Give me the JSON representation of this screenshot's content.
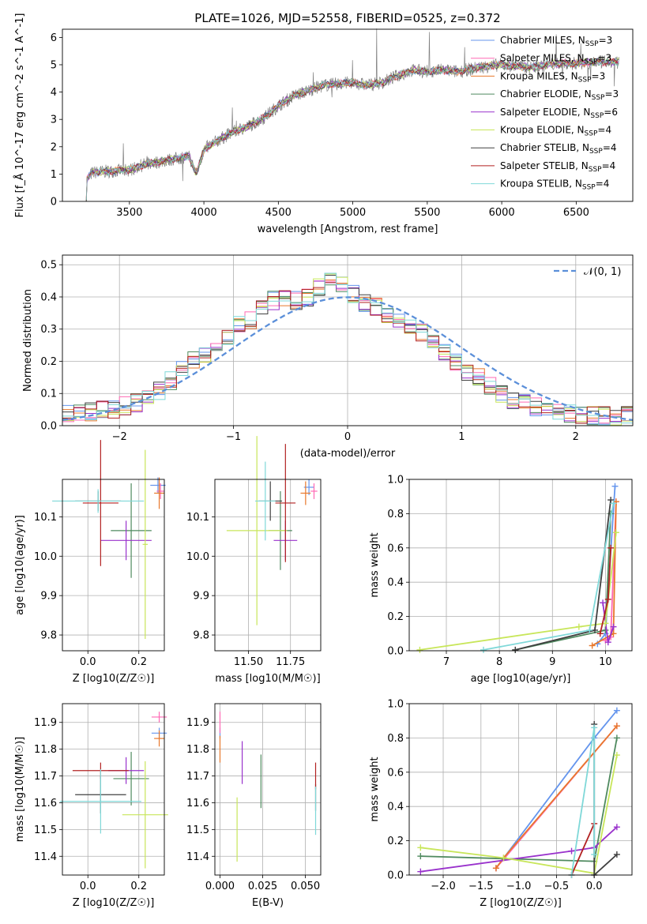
{
  "figure": {
    "title": "PLATE=1026, MJD=52558, FIBERID=0525, z=0.372"
  },
  "colors": {
    "Chabrier MILES": "#6495ed",
    "Salpeter MILES": "#ff69b4",
    "Kroupa MILES": "#e8782c",
    "Chabrier ELODIE": "#4f8a5f",
    "Salpeter ELODIE": "#9932cc",
    "Kroupa ELODIE": "#c8e65a",
    "Chabrier STELIB": "#404040",
    "Salpeter STELIB": "#b22222",
    "Kroupa STELIB": "#7fd8d8",
    "data": "#808080",
    "normal": "#5b8fd9"
  },
  "chart_data": [
    {
      "id": "spectrum",
      "type": "line",
      "title": "PLATE=1026, MJD=52558, FIBERID=0525, z=0.372",
      "xlabel": "wavelength [Angstrom, rest frame]",
      "ylabel": "Flux [f_Å 10^-17 erg cm^-2 s^-1 A^-1]",
      "xlim": [
        3050,
        6880
      ],
      "ylim": [
        0,
        6.3
      ],
      "xticks": [
        "3500",
        "4000",
        "4500",
        "5000",
        "5500",
        "6000",
        "6500"
      ],
      "yticks": [
        "0",
        "1",
        "2",
        "3",
        "4",
        "5",
        "6"
      ],
      "grid": false,
      "legend_position": "top-right",
      "legend": [
        {
          "model": "Chabrier MILES",
          "label": "Chabrier MILES, N",
          "sub": "SSP",
          "n": "=3"
        },
        {
          "model": "Salpeter MILES",
          "label": "Salpeter MILES, N",
          "sub": "SSP",
          "n": "=3"
        },
        {
          "model": "Kroupa MILES",
          "label": "Kroupa MILES, N",
          "sub": "SSP",
          "n": "=3"
        },
        {
          "model": "Chabrier ELODIE",
          "label": "Chabrier ELODIE, N",
          "sub": "SSP",
          "n": "=3"
        },
        {
          "model": "Salpeter ELODIE",
          "label": "Salpeter ELODIE, N",
          "sub": "SSP",
          "n": "=6"
        },
        {
          "model": "Kroupa ELODIE",
          "label": "Kroupa ELODIE, N",
          "sub": "SSP",
          "n": "=4"
        },
        {
          "model": "Chabrier STELIB",
          "label": "Chabrier STELIB, N",
          "sub": "SSP",
          "n": "=4"
        },
        {
          "model": "Salpeter STELIB",
          "label": "Salpeter STELIB, N",
          "sub": "SSP",
          "n": "=4"
        },
        {
          "model": "Kroupa STELIB",
          "label": "Kroupa STELIB, N",
          "sub": "SSP",
          "n": "=4"
        }
      ],
      "continuum": [
        [
          3210,
          0
        ],
        [
          3215,
          0.8
        ],
        [
          3250,
          1.05
        ],
        [
          3350,
          1.1
        ],
        [
          3500,
          1.15
        ],
        [
          3600,
          1.35
        ],
        [
          3700,
          1.45
        ],
        [
          3800,
          1.55
        ],
        [
          3900,
          1.65
        ],
        [
          3950,
          1.0
        ],
        [
          4000,
          1.9
        ],
        [
          4100,
          2.25
        ],
        [
          4200,
          2.55
        ],
        [
          4300,
          2.75
        ],
        [
          4400,
          3.05
        ],
        [
          4500,
          3.5
        ],
        [
          4600,
          3.85
        ],
        [
          4700,
          4.05
        ],
        [
          4800,
          4.25
        ],
        [
          4900,
          4.3
        ],
        [
          5000,
          4.35
        ],
        [
          5100,
          4.25
        ],
        [
          5200,
          4.35
        ],
        [
          5300,
          4.6
        ],
        [
          5400,
          4.8
        ],
        [
          5500,
          4.75
        ],
        [
          5600,
          4.8
        ],
        [
          5700,
          4.75
        ],
        [
          5800,
          4.85
        ],
        [
          5900,
          4.95
        ],
        [
          6000,
          5.0
        ],
        [
          6100,
          4.95
        ],
        [
          6200,
          4.9
        ],
        [
          6300,
          5.0
        ],
        [
          6400,
          5.05
        ],
        [
          6500,
          5.05
        ],
        [
          6600,
          5.1
        ],
        [
          6700,
          5.1
        ]
      ]
    },
    {
      "id": "residuals",
      "type": "area",
      "xlabel": "(data-model)/error",
      "ylabel": "Normed distribution",
      "xlim": [
        -2.5,
        2.5
      ],
      "ylim": [
        0,
        0.53
      ],
      "xticks": [
        "−2",
        "−1",
        "0",
        "1",
        "2"
      ],
      "yticks": [
        "0.0",
        "0.1",
        "0.2",
        "0.3",
        "0.4",
        "0.5"
      ],
      "grid": true,
      "legend_position": "top-right",
      "legend_label": "𝒩(0, 1)",
      "bins": [
        -2.5,
        2.5,
        50
      ],
      "histogram_values_approx": [
        0.04,
        0.04,
        0.045,
        0.05,
        0.05,
        0.06,
        0.07,
        0.09,
        0.11,
        0.14,
        0.17,
        0.2,
        0.22,
        0.25,
        0.28,
        0.31,
        0.33,
        0.36,
        0.39,
        0.4,
        0.39,
        0.4,
        0.43,
        0.45,
        0.44,
        0.41,
        0.38,
        0.37,
        0.35,
        0.33,
        0.31,
        0.29,
        0.26,
        0.23,
        0.2,
        0.17,
        0.15,
        0.12,
        0.1,
        0.08,
        0.07,
        0.06,
        0.05,
        0.045,
        0.04,
        0.035,
        0.03,
        0.03,
        0.03,
        0.03
      ]
    },
    {
      "id": "age-vs-Z",
      "type": "scatter",
      "xlabel": "Z [log10(Z/Z☉)]",
      "ylabel": "age [log10(age/yr)]",
      "xlim": [
        -0.1,
        0.3
      ],
      "ylim": [
        9.76,
        10.195
      ],
      "xticks": [
        "0.0",
        "0.2"
      ],
      "yticks": [
        "9.8",
        "9.9",
        "10.0",
        "10.1"
      ],
      "grid": true,
      "points": [
        {
          "model": "Chabrier MILES",
          "x": 0.275,
          "y": 10.18,
          "xerr": 0.03,
          "yerr": 0.02
        },
        {
          "model": "Salpeter MILES",
          "x": 0.285,
          "y": 10.165,
          "xerr": 0.015,
          "yerr": 0.02
        },
        {
          "model": "Kroupa MILES",
          "x": 0.28,
          "y": 10.16,
          "xerr": 0.02,
          "yerr": 0.04
        },
        {
          "model": "Chabrier ELODIE",
          "x": 0.17,
          "y": 10.065,
          "xerr": 0.08,
          "yerr": 0.12
        },
        {
          "model": "Salpeter ELODIE",
          "x": 0.15,
          "y": 10.04,
          "xerr": 0.1,
          "yerr": 0.05
        },
        {
          "model": "Kroupa ELODIE",
          "x": 0.225,
          "y": 10.03,
          "xerr": 0.01,
          "yerr": 0.24
        },
        {
          "model": "Chabrier STELIB",
          "x": 0.04,
          "y": 10.14,
          "xerr": 0.09,
          "yerr": 0.025
        },
        {
          "model": "Salpeter STELIB",
          "x": 0.05,
          "y": 10.135,
          "xerr": 0.07,
          "yerr": 0.16
        },
        {
          "model": "Kroupa STELIB",
          "x": 0.04,
          "y": 10.14,
          "xerr": 0.18,
          "yerr": 0.03
        }
      ]
    },
    {
      "id": "age-vs-mass",
      "type": "scatter",
      "xlabel": "mass [log10(M/M☉)]",
      "ylabel": "",
      "xlim": [
        11.3,
        11.93
      ],
      "ylim": [
        9.76,
        10.195
      ],
      "xticks": [
        "11.50",
        "11.75"
      ],
      "yticks": [
        "9.8",
        "9.9",
        "10.0",
        "10.1"
      ],
      "grid": true,
      "points": [
        {
          "model": "Chabrier MILES",
          "x": 11.86,
          "y": 10.175,
          "xerr": 0.03,
          "yerr": 0.02
        },
        {
          "model": "Salpeter MILES",
          "x": 11.89,
          "y": 10.165,
          "xerr": 0.02,
          "yerr": 0.02
        },
        {
          "model": "Kroupa MILES",
          "x": 11.84,
          "y": 10.16,
          "xerr": 0.03,
          "yerr": 0.03
        },
        {
          "model": "Chabrier ELODIE",
          "x": 11.69,
          "y": 10.065,
          "xerr": 0.07,
          "yerr": 0.1
        },
        {
          "model": "Salpeter ELODIE",
          "x": 11.72,
          "y": 10.04,
          "xerr": 0.07,
          "yerr": 0.05
        },
        {
          "model": "Kroupa ELODIE",
          "x": 11.55,
          "y": 10.065,
          "xerr": 0.18,
          "yerr": 0.24
        },
        {
          "model": "Chabrier STELIB",
          "x": 11.63,
          "y": 10.14,
          "xerr": 0.07,
          "yerr": 0.05
        },
        {
          "model": "Salpeter STELIB",
          "x": 11.72,
          "y": 10.135,
          "xerr": 0.06,
          "yerr": 0.15
        },
        {
          "model": "Kroupa STELIB",
          "x": 11.6,
          "y": 10.14,
          "xerr": 0.06,
          "yerr": 0.1
        }
      ]
    },
    {
      "id": "weight-vs-age",
      "type": "line",
      "xlabel": "age [log10(age/yr)]",
      "ylabel": "mass weight",
      "xlim": [
        6.3,
        10.5
      ],
      "ylim": [
        0,
        1
      ],
      "xticks": [
        "7",
        "8",
        "9",
        "10"
      ],
      "yticks": [
        "0.0",
        "0.2",
        "0.4",
        "0.6",
        "0.8",
        "1.0"
      ],
      "grid": true,
      "series": [
        {
          "model": "Chabrier MILES",
          "x": [
            9.85,
            10.0,
            10.18
          ],
          "y": [
            0.04,
            0.1,
            0.96
          ]
        },
        {
          "model": "Salpeter MILES",
          "x": [
            10.0,
            10.1,
            10.2
          ],
          "y": [
            0.06,
            0.08,
            0.87
          ]
        },
        {
          "model": "Kroupa MILES",
          "x": [
            9.75,
            10.15,
            10.2
          ],
          "y": [
            0.03,
            0.1,
            0.87
          ]
        },
        {
          "model": "Chabrier ELODIE",
          "x": [
            8.3,
            10.0,
            10.1
          ],
          "y": [
            0.005,
            0.12,
            0.8
          ]
        },
        {
          "model": "Salpeter ELODIE",
          "x": [
            9.95,
            10.05,
            10.15
          ],
          "y": [
            0.28,
            0.05,
            0.14
          ]
        },
        {
          "model": "Kroupa ELODIE",
          "x": [
            6.5,
            9.5,
            10.0,
            10.2
          ],
          "y": [
            0.005,
            0.14,
            0.16,
            0.69
          ]
        },
        {
          "model": "Chabrier STELIB",
          "x": [
            8.3,
            9.8,
            10.1
          ],
          "y": [
            0.005,
            0.12,
            0.88
          ]
        },
        {
          "model": "Salpeter STELIB",
          "x": [
            9.9,
            10.05,
            10.1
          ],
          "y": [
            0.1,
            0.3,
            0.6
          ]
        },
        {
          "model": "Kroupa STELIB",
          "x": [
            7.7,
            9.7,
            10.15
          ],
          "y": [
            0.005,
            0.12,
            0.86
          ]
        }
      ]
    },
    {
      "id": "mass-vs-Z",
      "type": "scatter",
      "xlabel": "Z [log10(Z/Z☉)]",
      "ylabel": "mass [log10(M/M☉)]",
      "xlim": [
        -0.1,
        0.3
      ],
      "ylim": [
        11.33,
        11.97
      ],
      "xticks": [
        "0.0",
        "0.2"
      ],
      "yticks": [
        "11.4",
        "11.5",
        "11.6",
        "11.7",
        "11.8",
        "11.9"
      ],
      "grid": true,
      "points": [
        {
          "model": "Chabrier MILES",
          "x": 0.28,
          "y": 11.86,
          "xerr": 0.03,
          "yerr": 0.02
        },
        {
          "model": "Salpeter MILES",
          "x": 0.28,
          "y": 11.92,
          "xerr": 0.03,
          "yerr": 0.02
        },
        {
          "model": "Kroupa MILES",
          "x": 0.28,
          "y": 11.84,
          "xerr": 0.02,
          "yerr": 0.03
        },
        {
          "model": "Chabrier ELODIE",
          "x": 0.17,
          "y": 11.69,
          "xerr": 0.07,
          "yerr": 0.1
        },
        {
          "model": "Salpeter ELODIE",
          "x": 0.15,
          "y": 11.72,
          "xerr": 0.07,
          "yerr": 0.05
        },
        {
          "model": "Kroupa ELODIE",
          "x": 0.225,
          "y": 11.555,
          "xerr": 0.09,
          "yerr": 0.2
        },
        {
          "model": "Chabrier STELIB",
          "x": 0.05,
          "y": 11.63,
          "xerr": 0.1,
          "yerr": 0.07
        },
        {
          "model": "Salpeter STELIB",
          "x": 0.05,
          "y": 11.72,
          "xerr": 0.11,
          "yerr": 0.03
        },
        {
          "model": "Kroupa STELIB",
          "x": 0.05,
          "y": 11.605,
          "xerr": 0.16,
          "yerr": 0.12
        }
      ]
    },
    {
      "id": "mass-vs-EBV",
      "type": "scatter",
      "xlabel": "E(B-V)",
      "ylabel": "",
      "xlim": [
        -0.003,
        0.059
      ],
      "ylim": [
        11.33,
        11.97
      ],
      "xticks": [
        "0.000",
        "0.025",
        "0.050"
      ],
      "yticks": [
        "11.4",
        "11.5",
        "11.6",
        "11.7",
        "11.8",
        "11.9"
      ],
      "grid": true,
      "points": [
        {
          "model": "Chabrier MILES",
          "x": 0.0,
          "y": 11.86,
          "xerr": 0.0,
          "yerr": 0.02
        },
        {
          "model": "Salpeter MILES",
          "x": 0.0,
          "y": 11.9,
          "xerr": 0.0,
          "yerr": 0.04
        },
        {
          "model": "Kroupa MILES",
          "x": 0.0,
          "y": 11.8,
          "xerr": 0.0,
          "yerr": 0.05
        },
        {
          "model": "Chabrier ELODIE",
          "x": 0.024,
          "y": 11.68,
          "xerr": 0.0,
          "yerr": 0.1
        },
        {
          "model": "Salpeter ELODIE",
          "x": 0.013,
          "y": 11.75,
          "xerr": 0.0,
          "yerr": 0.08
        },
        {
          "model": "Kroupa ELODIE",
          "x": 0.01,
          "y": 11.5,
          "xerr": 0.0,
          "yerr": 0.12
        },
        {
          "model": "Chabrier STELIB",
          "x": 0.056,
          "y": 11.62,
          "xerr": 0.0,
          "yerr": 0.05
        },
        {
          "model": "Salpeter STELIB",
          "x": 0.056,
          "y": 11.7,
          "xerr": 0.0,
          "yerr": 0.05
        },
        {
          "model": "Kroupa STELIB",
          "x": 0.056,
          "y": 11.57,
          "xerr": 0.0,
          "yerr": 0.09
        }
      ]
    },
    {
      "id": "weight-vs-Z",
      "type": "line",
      "xlabel": "Z [log10(Z/Z☉)]",
      "ylabel": "mass weight",
      "xlim": [
        -2.45,
        0.5
      ],
      "ylim": [
        0,
        1
      ],
      "xticks": [
        "−2.0",
        "−1.5",
        "−1.0",
        "−0.5",
        "0.0"
      ],
      "yticks": [
        "0.0",
        "0.2",
        "0.4",
        "0.6",
        "0.8",
        "1.0"
      ],
      "grid": true,
      "series": [
        {
          "model": "Chabrier MILES",
          "x": [
            -1.3,
            0.0,
            0.3
          ],
          "y": [
            0.04,
            0.8,
            0.96
          ]
        },
        {
          "model": "Salpeter MILES",
          "x": [
            -1.3,
            0.3
          ],
          "y": [
            0.04,
            0.87
          ]
        },
        {
          "model": "Kroupa MILES",
          "x": [
            -1.3,
            -1.2,
            0.3
          ],
          "y": [
            0.04,
            0.1,
            0.87
          ]
        },
        {
          "model": "Chabrier ELODIE",
          "x": [
            -2.3,
            0.0,
            0.3
          ],
          "y": [
            0.11,
            0.08,
            0.8
          ]
        },
        {
          "model": "Salpeter ELODIE",
          "x": [
            -2.3,
            -0.3,
            0.0,
            0.3
          ],
          "y": [
            0.02,
            0.14,
            0.16,
            0.28
          ]
        },
        {
          "model": "Kroupa ELODIE",
          "x": [
            -2.3,
            -1.2,
            0.0,
            0.3
          ],
          "y": [
            0.16,
            0.1,
            0.01,
            0.7
          ]
        },
        {
          "model": "Chabrier STELIB",
          "x": [
            0.0,
            0.0,
            0.3
          ],
          "y": [
            0.88,
            0.0,
            0.12
          ]
        },
        {
          "model": "Salpeter STELIB",
          "x": [
            -0.3,
            0.0
          ],
          "y": [
            0.0,
            0.3
          ]
        },
        {
          "model": "Kroupa STELIB",
          "x": [
            -0.3,
            0.0,
            0.0
          ],
          "y": [
            0.0,
            0.86,
            0.12
          ]
        }
      ]
    }
  ]
}
